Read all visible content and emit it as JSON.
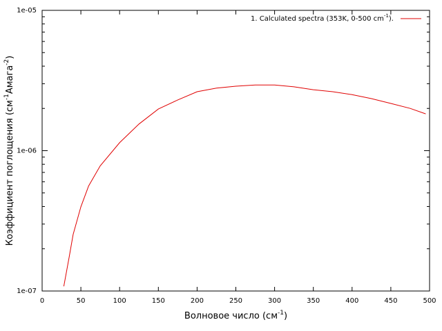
{
  "chart_data": {
    "type": "line",
    "xlabel": [
      "Волновое число (см",
      "-1",
      ")"
    ],
    "ylabel": [
      "Коэффициент поглощения (см",
      "-1",
      "Амага",
      "-2",
      ")"
    ],
    "x": [
      28,
      35,
      40,
      50,
      60,
      75,
      100,
      125,
      150,
      175,
      200,
      225,
      250,
      275,
      300,
      325,
      350,
      375,
      400,
      425,
      450,
      475,
      495
    ],
    "series": [
      {
        "name": [
          "1. Calculated spectra (353K, 0-500 cm",
          "-1",
          ")."
        ],
        "color": "#e00000",
        "values": [
          1.08e-07,
          1.76e-07,
          2.53e-07,
          3.98e-07,
          5.6e-07,
          7.8e-07,
          1.14e-06,
          1.55e-06,
          1.98e-06,
          2.3e-06,
          2.63e-06,
          2.79e-06,
          2.88e-06,
          2.94e-06,
          2.94e-06,
          2.85e-06,
          2.72e-06,
          2.63e-06,
          2.51e-06,
          2.35e-06,
          2.17e-06,
          2e-06,
          1.83e-06
        ]
      }
    ],
    "xlim": [
      0,
      500
    ],
    "xticks": [
      0,
      50,
      100,
      150,
      200,
      250,
      300,
      350,
      400,
      450,
      500
    ],
    "ylim": [
      1e-07,
      1e-05
    ],
    "log_y": true,
    "yticks": [
      {
        "value": 1e-07,
        "label": "1e-07"
      },
      {
        "value": 1e-06,
        "label": "1e-06"
      },
      {
        "value": 1e-05,
        "label": "1e-05"
      }
    ],
    "yminorticks": [
      2e-07,
      3e-07,
      4e-07,
      5e-07,
      6e-07,
      7e-07,
      8e-07,
      9e-07,
      2e-06,
      3e-06,
      4e-06,
      5e-06,
      6e-06,
      7e-06,
      8e-06,
      9e-06
    ],
    "legend": "top-right"
  }
}
